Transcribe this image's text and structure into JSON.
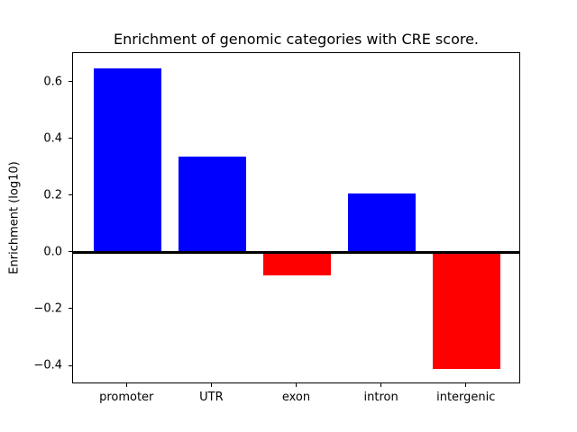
{
  "figure": {
    "title": "Enrichment of genomic categories with CRE score.",
    "ylabel": "Enrichment (log10)",
    "xlabel": "",
    "background_color": "#ffffff",
    "axes_edge_color": "#000000"
  },
  "chart_data": {
    "type": "bar",
    "title": "Enrichment of genomic categories with CRE score.",
    "xlabel": "",
    "ylabel": "Enrichment (log10)",
    "categories": [
      "promoter",
      "UTR",
      "exon",
      "intron",
      "intergenic"
    ],
    "values": [
      0.65,
      0.34,
      -0.08,
      0.21,
      -0.41
    ],
    "bar_colors": [
      "#0000ff",
      "#0000ff",
      "#ff0000",
      "#0000ff",
      "#ff0000"
    ],
    "positive_color": "#0000ff",
    "negative_color": "#ff0000",
    "bar_width_fraction": 0.8,
    "ylim": [
      -0.463,
      0.703
    ],
    "xlim": [
      -0.64,
      4.64
    ],
    "yticks": [
      0.6,
      0.4,
      0.2,
      0.0,
      -0.2,
      -0.4
    ],
    "ytick_labels": [
      "0.6",
      "0.4",
      "0.2",
      "0.0",
      "−0.2",
      "−0.4"
    ],
    "zero_line": true,
    "zero_line_color": "#000000",
    "grid": false,
    "legend_position": "none"
  }
}
